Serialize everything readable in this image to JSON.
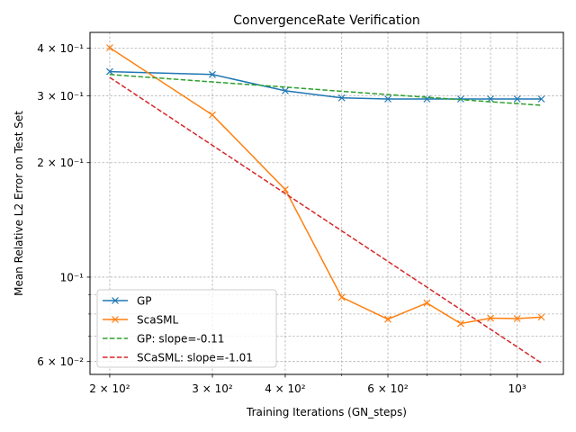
{
  "chart_data": {
    "type": "line",
    "title": "ConvergenceRate Verification",
    "xlabel": "Training Iterations (GN_steps)",
    "ylabel": "Mean Relative L2 Error on Test Set",
    "x_scale": "log",
    "y_scale": "log",
    "xlim": [
      185,
      1200
    ],
    "ylim": [
      0.0555,
      0.44
    ],
    "x_ticks": [
      {
        "value": 200,
        "label": "2 × 10²"
      },
      {
        "value": 300,
        "label": "3 × 10²"
      },
      {
        "value": 400,
        "label": "4 × 10²"
      },
      {
        "value": 600,
        "label": "6 × 10²"
      },
      {
        "value": 1000,
        "label": "10³"
      }
    ],
    "x_minor_ticks": [
      500,
      700,
      800,
      900
    ],
    "y_ticks": [
      {
        "value": 0.4,
        "label": "4 × 10⁻¹"
      },
      {
        "value": 0.3,
        "label": "3 × 10⁻¹"
      },
      {
        "value": 0.2,
        "label": "2 × 10⁻¹"
      },
      {
        "value": 0.1,
        "label": "10⁻¹"
      },
      {
        "value": 0.06,
        "label": "6 × 10⁻²"
      }
    ],
    "y_minor_ticks": [
      0.07,
      0.08,
      0.09
    ],
    "grid": true,
    "legend_position": "lower-left",
    "series": [
      {
        "name": "GP",
        "color": "#1f77b4",
        "style": "solid",
        "marker": "x",
        "x": [
          200,
          300,
          400,
          500,
          600,
          700,
          800,
          900,
          1000,
          1100
        ],
        "y": [
          0.347,
          0.341,
          0.309,
          0.296,
          0.294,
          0.294,
          0.294,
          0.294,
          0.294,
          0.294
        ]
      },
      {
        "name": "ScaSML",
        "color": "#ff7f0e",
        "style": "solid",
        "marker": "x",
        "x": [
          200,
          300,
          400,
          500,
          600,
          700,
          800,
          900,
          1000,
          1100
        ],
        "y": [
          0.401,
          0.267,
          0.17,
          0.0885,
          0.0775,
          0.0855,
          0.0755,
          0.078,
          0.0778,
          0.0785
        ]
      },
      {
        "name": "GP: slope=-0.11",
        "color": "#2ca02c",
        "style": "dashed",
        "marker": "none",
        "x": [
          200,
          300,
          400,
          500,
          600,
          700,
          800,
          900,
          1000,
          1100
        ],
        "y": [
          0.341,
          0.326,
          0.316,
          0.308,
          0.302,
          0.297,
          0.293,
          0.289,
          0.286,
          0.283
        ]
      },
      {
        "name": "SCaSML: slope=-1.01",
        "color": "#d62728",
        "style": "dashed",
        "marker": "none",
        "x": [
          200,
          1100
        ],
        "y": [
          0.335,
          0.0595
        ]
      }
    ]
  }
}
